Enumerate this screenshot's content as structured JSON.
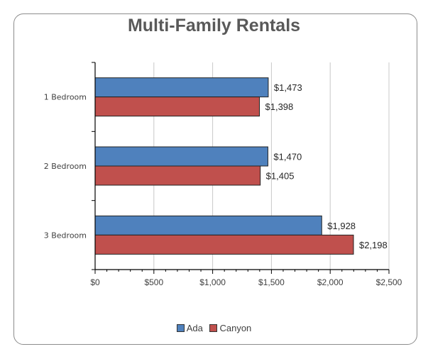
{
  "chart_data": {
    "type": "bar",
    "orientation": "horizontal",
    "title": "Multi-Family Rentals",
    "categories": [
      "1 Bedroom",
      "2 Bedroom",
      "3 Bedroom"
    ],
    "series": [
      {
        "name": "Ada",
        "values": [
          1473,
          1470,
          1928
        ],
        "labels": [
          "$1,473",
          "$1,470",
          "$1,928"
        ],
        "color": "#4f81bd"
      },
      {
        "name": "Canyon",
        "values": [
          1398,
          1405,
          2198
        ],
        "labels": [
          "$1,398",
          "$1,405",
          "$2,198"
        ],
        "color": "#c0504d"
      }
    ],
    "xlim": [
      0,
      2500
    ],
    "xticks": [
      0,
      500,
      1000,
      1500,
      2000,
      2500
    ],
    "xtick_labels": [
      "$0",
      "$500",
      "$1,000",
      "$1,500",
      "$2,000",
      "$2,500"
    ],
    "grid": "vertical",
    "legend_position": "bottom"
  }
}
